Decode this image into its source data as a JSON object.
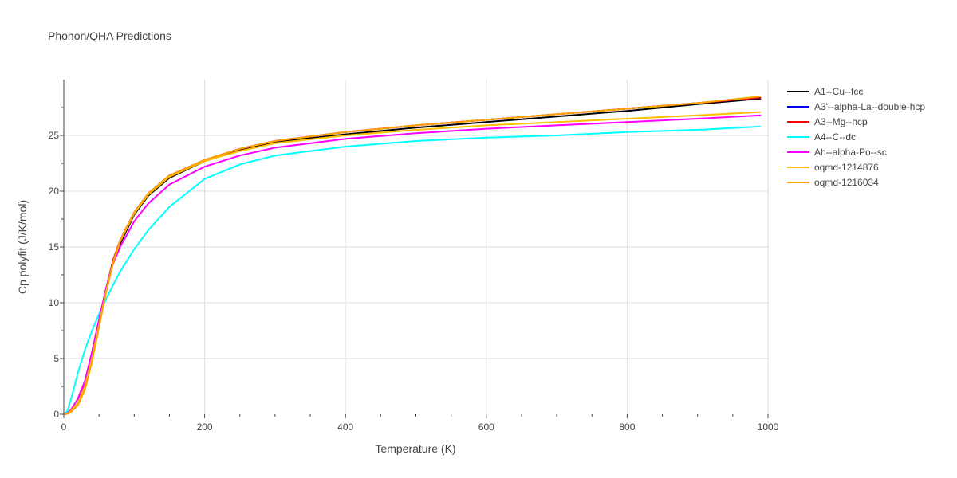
{
  "chart_data": {
    "type": "line",
    "title": "Phonon/QHA Predictions",
    "xlabel": "Temperature (K)",
    "ylabel": "Cp polyfit (J/K/mol)",
    "xlim": [
      0,
      1000
    ],
    "ylim": [
      0,
      30
    ],
    "xticks": [
      0,
      200,
      400,
      600,
      800,
      1000
    ],
    "yticks": [
      0,
      5,
      10,
      15,
      20,
      25
    ],
    "grid": true,
    "legend_position": "top-right outside",
    "x": [
      0,
      5,
      10,
      20,
      30,
      40,
      50,
      60,
      70,
      80,
      100,
      120,
      150,
      200,
      250,
      300,
      400,
      500,
      600,
      700,
      800,
      900,
      990
    ],
    "series": [
      {
        "name": "A1--Cu--fcc",
        "color": "#000000",
        "values": [
          0,
          0.05,
          0.3,
          1.0,
          2.5,
          5.0,
          8.0,
          11.0,
          13.6,
          15.3,
          17.9,
          19.6,
          21.2,
          22.7,
          23.7,
          24.4,
          25.1,
          25.7,
          26.2,
          26.7,
          27.2,
          27.8,
          28.3
        ]
      },
      {
        "name": "A3'--alpha-La--double-hcp",
        "color": "#0000ff",
        "values": [
          0,
          0.05,
          0.3,
          1.0,
          2.6,
          5.2,
          8.2,
          11.2,
          13.8,
          15.6,
          18.1,
          19.8,
          21.4,
          22.8,
          23.8,
          24.5,
          25.3,
          25.9,
          26.4,
          26.9,
          27.4,
          27.9,
          28.4
        ]
      },
      {
        "name": "A3--Mg--hcp",
        "color": "#ff0000",
        "values": [
          0,
          0.05,
          0.3,
          1.0,
          2.6,
          5.2,
          8.2,
          11.2,
          13.8,
          15.6,
          18.1,
          19.8,
          21.4,
          22.8,
          23.8,
          24.5,
          25.3,
          25.9,
          26.4,
          26.9,
          27.4,
          27.9,
          28.4
        ]
      },
      {
        "name": "A4--C--dc",
        "color": "#00ffff",
        "values": [
          0,
          0.3,
          1.3,
          3.7,
          5.8,
          7.5,
          9.0,
          10.3,
          11.6,
          12.8,
          14.8,
          16.5,
          18.6,
          21.1,
          22.4,
          23.2,
          24.0,
          24.5,
          24.8,
          25.0,
          25.3,
          25.5,
          25.8
        ]
      },
      {
        "name": "Ah--alpha-Po--sc",
        "color": "#ff00ff",
        "values": [
          0,
          0.1,
          0.4,
          1.4,
          3.0,
          5.6,
          8.5,
          11.3,
          13.5,
          15.0,
          17.3,
          18.9,
          20.6,
          22.2,
          23.2,
          23.9,
          24.7,
          25.2,
          25.6,
          25.9,
          26.2,
          26.5,
          26.8
        ]
      },
      {
        "name": "oqmd-1214876",
        "color": "#ffbf00",
        "values": [
          0,
          0.05,
          0.3,
          1.0,
          2.5,
          5.0,
          8.0,
          11.0,
          13.6,
          15.5,
          18.0,
          19.7,
          21.3,
          22.7,
          23.6,
          24.3,
          25.0,
          25.5,
          25.9,
          26.2,
          26.5,
          26.8,
          27.1
        ]
      },
      {
        "name": "oqmd-1216034",
        "color": "#ffa500",
        "values": [
          0,
          0.04,
          0.2,
          0.8,
          2.2,
          4.7,
          7.8,
          10.9,
          13.6,
          15.6,
          18.1,
          19.8,
          21.4,
          22.8,
          23.8,
          24.5,
          25.3,
          25.9,
          26.4,
          26.9,
          27.4,
          27.9,
          28.5
        ]
      }
    ]
  }
}
